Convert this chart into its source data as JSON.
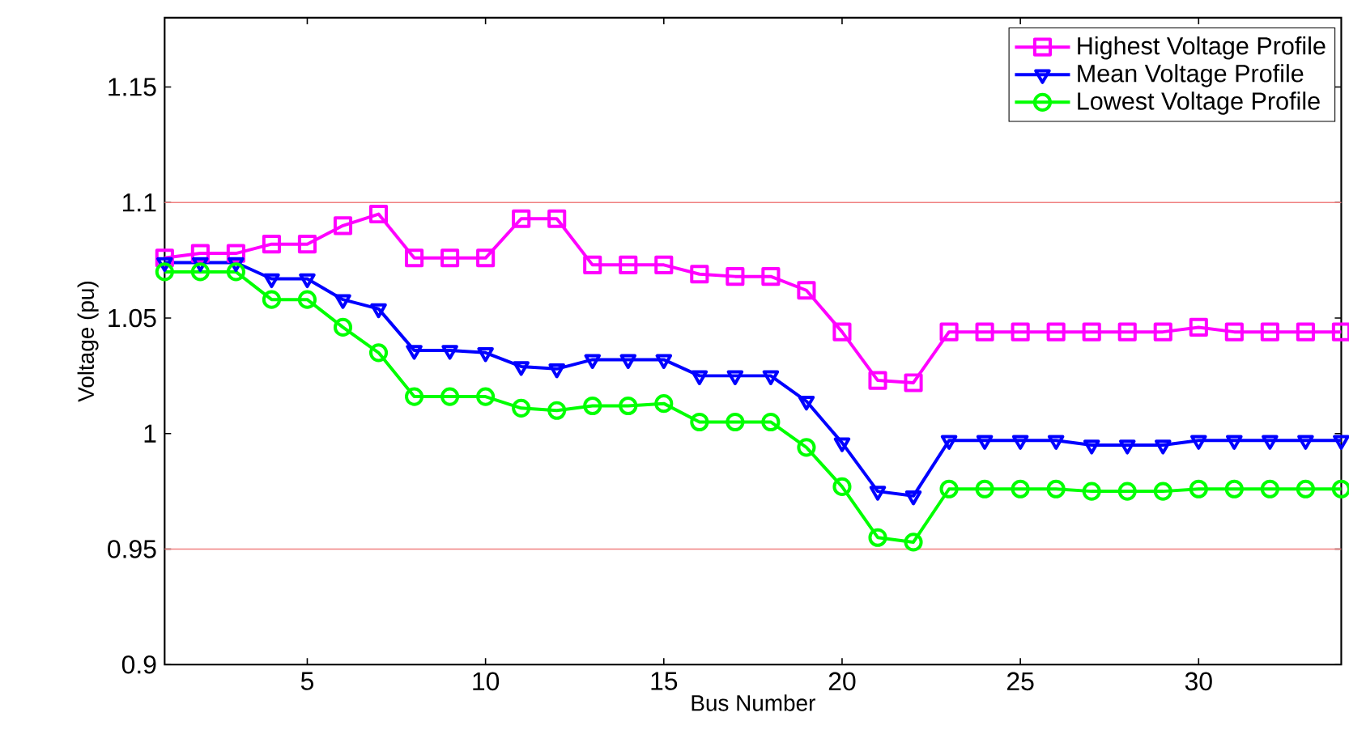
{
  "chart_data": {
    "type": "line",
    "xlabel": "Bus Number",
    "ylabel": "Voltage (pu)",
    "x": [
      1,
      2,
      3,
      4,
      5,
      6,
      7,
      8,
      9,
      10,
      11,
      12,
      13,
      14,
      15,
      16,
      17,
      18,
      19,
      20,
      21,
      22,
      23,
      24,
      25,
      26,
      27,
      28,
      29,
      30,
      31,
      32,
      33,
      34
    ],
    "series": [
      {
        "name": "Highest Voltage Profile",
        "color": "#ff00ff",
        "marker": "square",
        "values": [
          1.076,
          1.078,
          1.078,
          1.082,
          1.082,
          1.09,
          1.095,
          1.076,
          1.076,
          1.076,
          1.093,
          1.093,
          1.073,
          1.073,
          1.073,
          1.069,
          1.068,
          1.068,
          1.062,
          1.044,
          1.023,
          1.022,
          1.044,
          1.044,
          1.044,
          1.044,
          1.044,
          1.044,
          1.044,
          1.046,
          1.044,
          1.044,
          1.044,
          1.044
        ]
      },
      {
        "name": "Mean Voltage Profile",
        "color": "#0000ff",
        "marker": "triangle",
        "values": [
          1.074,
          1.074,
          1.074,
          1.067,
          1.067,
          1.058,
          1.054,
          1.036,
          1.036,
          1.035,
          1.029,
          1.028,
          1.032,
          1.032,
          1.032,
          1.025,
          1.025,
          1.025,
          1.014,
          0.996,
          0.975,
          0.973,
          0.997,
          0.997,
          0.997,
          0.997,
          0.995,
          0.995,
          0.995,
          0.997,
          0.997,
          0.997,
          0.997,
          0.997
        ]
      },
      {
        "name": "Lowest Voltage Profile",
        "color": "#00ff00",
        "marker": "circle",
        "values": [
          1.07,
          1.07,
          1.07,
          1.058,
          1.058,
          1.046,
          1.035,
          1.016,
          1.016,
          1.016,
          1.011,
          1.01,
          1.012,
          1.012,
          1.013,
          1.005,
          1.005,
          1.005,
          0.994,
          0.977,
          0.955,
          0.953,
          0.976,
          0.976,
          0.976,
          0.976,
          0.975,
          0.975,
          0.975,
          0.976,
          0.976,
          0.976,
          0.976,
          0.976
        ]
      }
    ],
    "xlim": [
      1,
      34
    ],
    "ylim": [
      0.9,
      1.18
    ],
    "xticks": [
      5,
      10,
      15,
      20,
      25,
      30
    ],
    "yticks": [
      0.9,
      0.95,
      1,
      1.05,
      1.1,
      1.15
    ],
    "ref_lines": [
      {
        "axis": "y",
        "value": 1.1,
        "color": "#f08080"
      },
      {
        "axis": "y",
        "value": 0.95,
        "color": "#f08080"
      }
    ],
    "grid": false,
    "legend": "top right",
    "line_style": "solid"
  }
}
